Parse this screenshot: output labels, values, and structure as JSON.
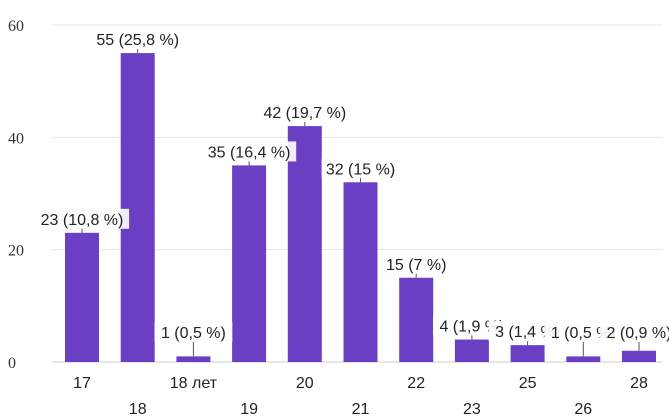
{
  "chart_data": {
    "type": "bar",
    "categories": [
      "17",
      "18",
      "18 лет",
      "19",
      "20",
      "21",
      "22",
      "23",
      "25",
      "26",
      "28"
    ],
    "values": [
      23,
      55,
      1,
      35,
      42,
      32,
      15,
      4,
      3,
      1,
      2
    ],
    "data_labels": [
      "23 (10,8 %)",
      "55 (25,8 %)",
      "1 (0,5 %)",
      "35 (16,4 %)",
      "42 (19,7 %)",
      "32 (15 %)",
      "15 (7 %)",
      "4 (1,9 %)",
      "3 (1,4 %)",
      "1 (0,5 %)",
      "2 (0,9 %)"
    ],
    "y_ticks": [
      0,
      20,
      40,
      60
    ],
    "ylim": [
      0,
      60
    ],
    "title": "",
    "xlabel": "",
    "ylabel": "",
    "grid": true,
    "legend": "none",
    "bar_color": "#6a3fc4",
    "grid_color": "#e6e6e6"
  }
}
